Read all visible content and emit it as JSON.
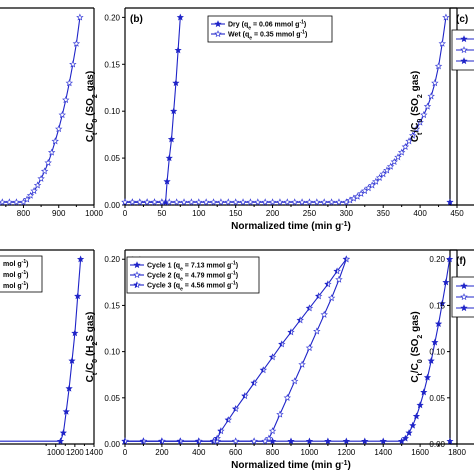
{
  "chart_data": [
    {
      "panel": "a",
      "type": "line",
      "xlim": [
        620,
        1000
      ],
      "ylim": [
        0,
        0.21
      ],
      "xticks": [
        800,
        900,
        1000
      ],
      "xtick_labels": [
        "800",
        "900",
        "1000"
      ],
      "series": [
        {
          "marker": "open-star",
          "x": [
            620,
            640,
            660,
            680,
            700,
            720,
            740,
            760,
            780,
            800,
            810,
            820,
            830,
            840,
            850,
            860,
            870,
            880,
            890,
            900,
            910,
            920,
            930,
            940,
            950,
            960
          ],
          "y": [
            0.003,
            0.003,
            0.003,
            0.003,
            0.003,
            0.003,
            0.003,
            0.003,
            0.003,
            0.003,
            0.006,
            0.01,
            0.015,
            0.021,
            0.028,
            0.036,
            0.045,
            0.056,
            0.068,
            0.081,
            0.096,
            0.112,
            0.13,
            0.15,
            0.172,
            0.2
          ]
        }
      ]
    },
    {
      "panel": "b",
      "type": "line",
      "label": "(b)",
      "ylabel": "C_t/C_0 (SO_2 gas)",
      "xlabel": "Normalized time (min g^-1)",
      "xlim": [
        0,
        450
      ],
      "ylim": [
        0,
        0.21
      ],
      "xticks": [
        0,
        50,
        100,
        150,
        200,
        250,
        300,
        350,
        400,
        450
      ],
      "xtick_labels": [
        "0",
        "50",
        "100",
        "150",
        "200",
        "250",
        "300",
        "350",
        "400",
        "450"
      ],
      "yticks": [
        0.0,
        0.05,
        0.1,
        0.15,
        0.2
      ],
      "ytick_labels": [
        "0.00",
        "0.05",
        "0.10",
        "0.15",
        "0.20"
      ],
      "legend_position": "top-center",
      "series": [
        {
          "name": "Dry (q_e = 0.06 mmol g^-1)",
          "name_parts": [
            "Dry (q",
            "e",
            " = 0.06 mmol g",
            "-1",
            ")"
          ],
          "marker": "filled-star",
          "x": [
            0,
            10,
            20,
            30,
            40,
            50,
            55,
            57,
            60,
            63,
            66,
            69,
            72,
            75
          ],
          "y": [
            0.003,
            0.003,
            0.003,
            0.003,
            0.003,
            0.003,
            0.003,
            0.025,
            0.05,
            0.07,
            0.1,
            0.13,
            0.165,
            0.2
          ]
        },
        {
          "name": "Wet (q_e = 0.35 mmol g^-1)",
          "name_parts": [
            "Wet (q",
            "e",
            " = 0.35 mmol g",
            "-1",
            ")"
          ],
          "marker": "open-star",
          "x": [
            0,
            10,
            20,
            30,
            40,
            50,
            60,
            70,
            80,
            90,
            100,
            110,
            120,
            130,
            140,
            150,
            160,
            170,
            180,
            190,
            200,
            210,
            220,
            230,
            240,
            250,
            260,
            270,
            280,
            290,
            300,
            305,
            310,
            315,
            320,
            325,
            330,
            335,
            340,
            345,
            350,
            355,
            360,
            365,
            370,
            375,
            380,
            385,
            390,
            395,
            400,
            405,
            410,
            415,
            420,
            425,
            430,
            435
          ],
          "y": [
            0.003,
            0.003,
            0.003,
            0.003,
            0.003,
            0.003,
            0.003,
            0.003,
            0.003,
            0.003,
            0.003,
            0.003,
            0.003,
            0.003,
            0.003,
            0.003,
            0.003,
            0.003,
            0.003,
            0.003,
            0.003,
            0.003,
            0.003,
            0.003,
            0.003,
            0.003,
            0.003,
            0.003,
            0.003,
            0.003,
            0.003,
            0.005,
            0.007,
            0.009,
            0.012,
            0.015,
            0.018,
            0.021,
            0.025,
            0.029,
            0.033,
            0.037,
            0.041,
            0.046,
            0.051,
            0.056,
            0.062,
            0.068,
            0.074,
            0.081,
            0.088,
            0.096,
            0.105,
            0.116,
            0.13,
            0.148,
            0.172,
            0.2
          ]
        }
      ]
    },
    {
      "panel": "c",
      "type": "line",
      "label": "(c)",
      "ylabel": "C_t/C_0 (SO_2 gas)",
      "ylim": [
        0,
        0.21
      ],
      "series": [
        {
          "marker": "filled-star",
          "x": [
            0
          ],
          "y": [
            0.003
          ]
        }
      ]
    },
    {
      "panel": "d",
      "type": "line",
      "xlim": [
        0,
        1400
      ],
      "ylim": [
        0,
        0.21
      ],
      "xticks": [
        1000,
        1200,
        1400
      ],
      "xtick_labels": [
        "1000",
        "1200",
        "1400"
      ],
      "legend_fragments": [
        "mol g^-1)",
        "mol g^-1)",
        "mol g^-1)"
      ],
      "series": [
        {
          "marker": "filled-star",
          "x": [
            0,
            1050,
            1080,
            1110,
            1140,
            1170,
            1200,
            1230,
            1260
          ],
          "y": [
            0.003,
            0.003,
            0.012,
            0.035,
            0.06,
            0.09,
            0.12,
            0.16,
            0.2
          ]
        }
      ]
    },
    {
      "panel": "e",
      "type": "line",
      "label": "(e)",
      "ylabel": "C_t/C_0 (H_2S gas)",
      "xlabel": "Normalized time (min g^-1)",
      "xlim": [
        0,
        1800
      ],
      "ylim": [
        0,
        0.21
      ],
      "xticks": [
        0,
        200,
        400,
        600,
        800,
        1000,
        1200,
        1400,
        1600,
        1800
      ],
      "xtick_labels": [
        "0",
        "200",
        "400",
        "600",
        "800",
        "1000",
        "1200",
        "1400",
        "1600",
        "1800"
      ],
      "yticks": [
        0.0,
        0.05,
        0.1,
        0.15,
        0.2
      ],
      "ytick_labels": [
        "0.00",
        "0.05",
        "0.10",
        "0.15",
        "0.20"
      ],
      "legend_position": "top-left",
      "series": [
        {
          "name": "Cycle 1 (q_e = 7.13 mmol g^-1)",
          "name_parts": [
            "Cycle 1 (q",
            "e",
            " = 7.13 mmol g",
            "-1",
            ")"
          ],
          "marker": "filled-star",
          "x": [
            0,
            100,
            200,
            300,
            400,
            500,
            600,
            700,
            800,
            900,
            1000,
            1100,
            1200,
            1300,
            1400,
            1500,
            1520,
            1540,
            1560,
            1580,
            1600,
            1620,
            1640,
            1660,
            1680,
            1700,
            1720,
            1740,
            1760
          ],
          "y": [
            0.003,
            0.003,
            0.003,
            0.003,
            0.003,
            0.003,
            0.003,
            0.003,
            0.003,
            0.003,
            0.003,
            0.003,
            0.003,
            0.003,
            0.003,
            0.003,
            0.006,
            0.012,
            0.02,
            0.03,
            0.042,
            0.056,
            0.072,
            0.09,
            0.11,
            0.13,
            0.152,
            0.175,
            0.2
          ]
        },
        {
          "name": "Cycle 2 (q_e = 4.79 mmol g^-1)",
          "name_parts": [
            "Cycle 2 (q",
            "e",
            " = 4.79 mmol g",
            "-1",
            ")"
          ],
          "marker": "open-star",
          "x": [
            0,
            100,
            200,
            300,
            400,
            500,
            600,
            700,
            760,
            780,
            800,
            840,
            880,
            920,
            960,
            1000,
            1040,
            1080,
            1120,
            1160,
            1200
          ],
          "y": [
            0.003,
            0.003,
            0.003,
            0.003,
            0.003,
            0.003,
            0.003,
            0.003,
            0.003,
            0.006,
            0.014,
            0.032,
            0.05,
            0.068,
            0.086,
            0.104,
            0.122,
            0.14,
            0.158,
            0.178,
            0.2
          ]
        },
        {
          "name": "Cycle 3 (q_e = 4.56 mmol g^-1)",
          "name_parts": [
            "Cycle 3 (q",
            "e",
            " = 4.56 mmol g",
            "-1",
            ")"
          ],
          "marker": "half-star",
          "x": [
            0,
            100,
            200,
            300,
            400,
            480,
            500,
            520,
            560,
            600,
            650,
            700,
            750,
            800,
            850,
            900,
            950,
            1000,
            1050,
            1100,
            1150,
            1200
          ],
          "y": [
            0.003,
            0.003,
            0.003,
            0.003,
            0.003,
            0.003,
            0.006,
            0.014,
            0.026,
            0.038,
            0.052,
            0.066,
            0.08,
            0.094,
            0.108,
            0.121,
            0.134,
            0.147,
            0.16,
            0.173,
            0.187,
            0.2
          ]
        }
      ]
    },
    {
      "panel": "f",
      "type": "line",
      "label": "(f)",
      "ylabel": "C_t/C_0 (SO_2 gas)",
      "ylim": [
        0,
        0.21
      ],
      "yticks": [
        0.0,
        0.05,
        0.1,
        0.15,
        0.2
      ],
      "ytick_labels": [
        "0.00",
        "0.05",
        "0.10",
        "0.15",
        "0.20"
      ],
      "series": [
        {
          "marker": "filled-star",
          "x": [
            0
          ],
          "y": [
            0.003
          ]
        }
      ]
    }
  ],
  "colors": {
    "series": "#1f24c8",
    "open_stroke": "#3b40d8",
    "axis": "#000000"
  }
}
